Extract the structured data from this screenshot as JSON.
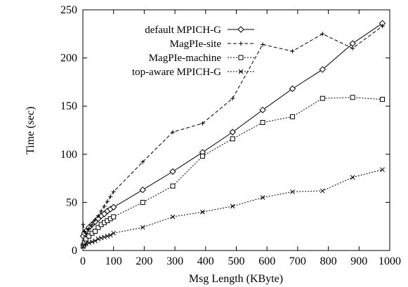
{
  "chart_data": {
    "type": "line",
    "title": "",
    "xlabel": "Msg Length (KByte)",
    "ylabel": "Time (sec)",
    "xlim": [
      0,
      1000
    ],
    "ylim": [
      0,
      250
    ],
    "xticks": [
      0,
      100,
      200,
      300,
      400,
      500,
      600,
      700,
      800,
      900,
      1000
    ],
    "yticks": [
      0,
      50,
      100,
      150,
      200,
      250
    ],
    "grid": false,
    "legend_position": "top-left",
    "series": [
      {
        "name": "default MPICH-G",
        "line_style": "solid",
        "marker": "diamond",
        "color": "#000000",
        "points": [
          [
            1,
            15
          ],
          [
            5,
            18
          ],
          [
            10,
            20
          ],
          [
            20,
            24
          ],
          [
            30,
            27
          ],
          [
            40,
            30
          ],
          [
            50,
            33
          ],
          [
            60,
            36
          ],
          [
            70,
            38
          ],
          [
            80,
            41
          ],
          [
            90,
            43
          ],
          [
            100,
            45
          ],
          [
            195,
            63
          ],
          [
            293,
            82
          ],
          [
            390,
            102
          ],
          [
            488,
            123
          ],
          [
            586,
            146
          ],
          [
            683,
            168
          ],
          [
            781,
            188
          ],
          [
            879,
            215
          ],
          [
            976,
            236
          ]
        ]
      },
      {
        "name": "MagPIe-site",
        "line_style": "dashed",
        "marker": "plus",
        "color": "#000000",
        "points": [
          [
            1,
            27
          ],
          [
            5,
            20
          ],
          [
            10,
            18
          ],
          [
            20,
            23
          ],
          [
            30,
            27
          ],
          [
            40,
            32
          ],
          [
            50,
            36
          ],
          [
            60,
            41
          ],
          [
            70,
            46
          ],
          [
            80,
            51
          ],
          [
            90,
            56
          ],
          [
            100,
            61
          ],
          [
            195,
            92
          ],
          [
            293,
            123
          ],
          [
            390,
            132
          ],
          [
            488,
            158
          ],
          [
            586,
            214
          ],
          [
            683,
            207
          ],
          [
            781,
            225
          ],
          [
            879,
            210
          ],
          [
            976,
            233
          ]
        ]
      },
      {
        "name": "MagPIe-machine",
        "line_style": "dotted",
        "marker": "square",
        "color": "#000000",
        "points": [
          [
            1,
            5
          ],
          [
            5,
            8
          ],
          [
            10,
            12
          ],
          [
            20,
            15
          ],
          [
            30,
            18
          ],
          [
            40,
            20
          ],
          [
            50,
            24
          ],
          [
            60,
            27
          ],
          [
            70,
            29
          ],
          [
            80,
            31
          ],
          [
            90,
            33
          ],
          [
            100,
            35
          ],
          [
            195,
            50
          ],
          [
            293,
            67
          ],
          [
            390,
            98
          ],
          [
            488,
            116
          ],
          [
            586,
            133
          ],
          [
            683,
            139
          ],
          [
            781,
            158
          ],
          [
            879,
            159
          ],
          [
            976,
            157
          ]
        ]
      },
      {
        "name": "top-aware MPICH-G",
        "line_style": "dotted",
        "marker": "cross",
        "color": "#000000",
        "points": [
          [
            1,
            4
          ],
          [
            5,
            6
          ],
          [
            10,
            7
          ],
          [
            20,
            8
          ],
          [
            30,
            9
          ],
          [
            40,
            10
          ],
          [
            50,
            12
          ],
          [
            60,
            13
          ],
          [
            70,
            14
          ],
          [
            80,
            15
          ],
          [
            90,
            16
          ],
          [
            100,
            18
          ],
          [
            195,
            24
          ],
          [
            293,
            35
          ],
          [
            390,
            40
          ],
          [
            488,
            46
          ],
          [
            586,
            55
          ],
          [
            683,
            61
          ],
          [
            781,
            62
          ],
          [
            879,
            76
          ],
          [
            976,
            84
          ]
        ]
      }
    ]
  }
}
